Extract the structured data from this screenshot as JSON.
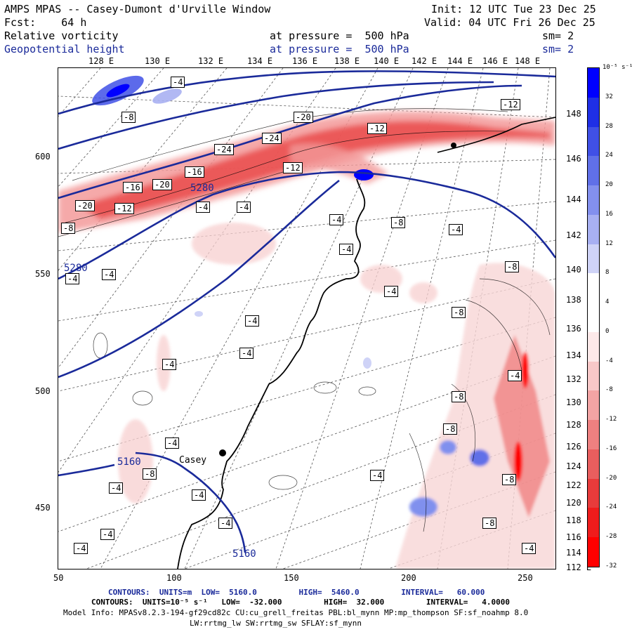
{
  "header": {
    "line1_left": "AMPS MPAS -- Casey-Dumont d'Urville Window",
    "line1_right": "Init: 12 UTC Tue 23 Dec 25",
    "line2_left": "Fcst:    64 h",
    "line2_right": "Valid: 04 UTC Fri 26 Dec 25",
    "field1_name": "Relative vorticity",
    "field1_level": "at pressure =  500 hPa",
    "field1_sm": "sm= 2",
    "field2_name": "Geopotential height",
    "field2_level": "at pressure =  500 hPa",
    "field2_sm": "sm= 2"
  },
  "colors": {
    "geopotential_line": "#1a2a9a",
    "positive_max": "#0000ff",
    "negative_max": "#ff0000",
    "coast": "#000000"
  },
  "map": {
    "top_lon_labels": [
      "128 E",
      "130 E",
      "132 E",
      "134 E",
      "136 E",
      "138 E",
      "140 E",
      "142 E",
      "144 E",
      "146 E",
      "148 E"
    ],
    "right_lon_labels": [
      "148 E",
      "146 E",
      "144 E",
      "142 E",
      "140 E",
      "138 E",
      "136 E",
      "134 E",
      "132 E",
      "130 E",
      "128 E",
      "126 E",
      "124 E",
      "122 E",
      "120 E",
      "118 E",
      "116 E",
      "114 E",
      "112 E"
    ],
    "left_axis_labels": [
      "600",
      "550",
      "500",
      "450"
    ],
    "bottom_axis_labels": [
      "50",
      "100",
      "150",
      "200",
      "250"
    ],
    "station": "Casey",
    "height_contour_labels": [
      "5280",
      "5280",
      "5160",
      "5160"
    ],
    "vorticity_labels": [
      "-4",
      "-8",
      "-12",
      "-16",
      "-20",
      "-24"
    ]
  },
  "colorbar": {
    "unit_label": "10⁻⁵ s⁻¹",
    "tick_labels": [
      "32",
      "28",
      "24",
      "20",
      "16",
      "12",
      "8",
      "4",
      "0",
      "-4",
      "-8",
      "-12",
      "-16",
      "-20",
      "-24",
      "-28",
      "-32"
    ],
    "colors": [
      "#0000ff",
      "#1f2fe6",
      "#4050e6",
      "#6070e8",
      "#8390ee",
      "#a8b0f2",
      "#cfd3f7",
      "#ffffff",
      "#ffffff",
      "#fde9e9",
      "#f8c8c8",
      "#f3a4a4",
      "#ee8080",
      "#e95e5e",
      "#e83b3b",
      "#ef1c1c",
      "#ff0000"
    ]
  },
  "footer": {
    "line1": "CONTOURS:  UNITS=m  LOW=  5160.0         HIGH=  5460.0         INTERVAL=   60.000",
    "line2": "CONTOURS:  UNITS=10⁻⁵ s⁻¹   LOW=  -32.000         HIGH=  32.000         INTERVAL=   4.0000",
    "line3": "Model Info: MPASv8.2.3-194-gf29cd82c CU:cu_grell_freitas PBL:bl_mynn MP:mp_thompson SF:sf_noahmp 8.0",
    "line4": "LW:rrtmg_lw SW:rrtmg_sw SFLAY:sf_mynn"
  }
}
